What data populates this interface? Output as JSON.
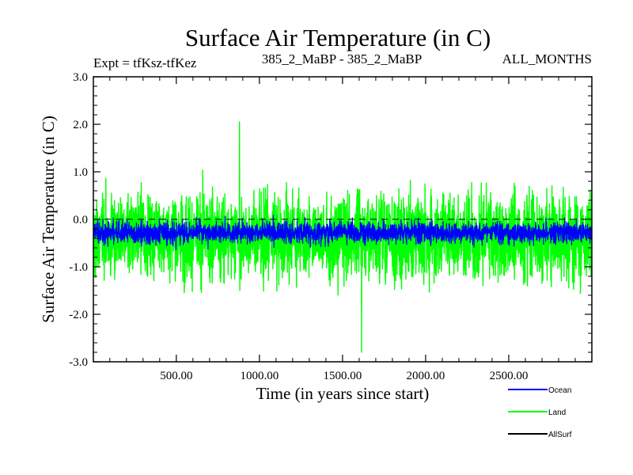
{
  "chart_data": {
    "type": "line",
    "title": "Surface Air Temperature (in C)",
    "subtitle_left": "Expt = tfKsz-tfKez",
    "subtitle_center": "385_2_MaBP - 385_2_MaBP",
    "subtitle_right": "ALL_MONTHS",
    "xlabel": "Time (in years since start)",
    "ylabel": "Surface Air Temperature (in C)",
    "xlim": [
      1,
      3000
    ],
    "ylim": [
      -3.0,
      3.0
    ],
    "x_ticks": [
      500,
      1000,
      1500,
      2000,
      2500
    ],
    "x_tick_labels": [
      "500.00",
      "1000.00",
      "1500.00",
      "2000.00",
      "2500.00"
    ],
    "y_ticks": [
      -3,
      -2,
      -1,
      0,
      1,
      2,
      3
    ],
    "y_tick_labels": [
      "-3.0",
      "-2.0",
      "-1.0",
      "0.0",
      "1.0",
      "2.0",
      "3.0"
    ],
    "zero_line": 0.0,
    "series": [
      {
        "name": "Land",
        "color": "#00ff00",
        "mean": -0.35,
        "typical_range": [
          -2.3,
          1.6
        ],
        "peaks": [
          {
            "x": 880,
            "y": 2.05
          },
          {
            "x": 1615,
            "y": -2.8
          }
        ]
      },
      {
        "name": "Ocean",
        "color": "#0000ff",
        "mean": -0.28,
        "typical_range": [
          -0.8,
          0.25
        ]
      },
      {
        "name": "AllSurf",
        "color": "#000000"
      }
    ],
    "legend": [
      {
        "label": "Ocean",
        "color": "#0000ff"
      },
      {
        "label": "Land",
        "color": "#00ff00"
      },
      {
        "label": "AllSurf",
        "color": "#000000"
      }
    ]
  }
}
